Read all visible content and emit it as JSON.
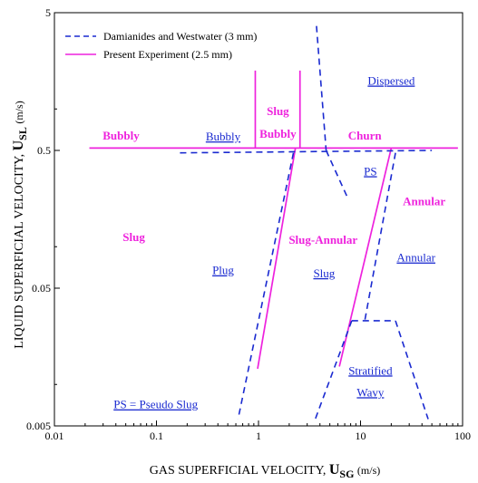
{
  "colors": {
    "present": "#ee22dd",
    "damianides": "#1a2ad0",
    "axis": "#000000"
  },
  "chart_data": {
    "type": "flow-regime-map",
    "xlabel": "GAS SUPERFICIAL VELOCITY,",
    "xlabel_symbol": "U",
    "xlabel_sub": "SG",
    "xlabel_unit": "(m/s)",
    "ylabel": "LIQUID SUPERFICIAL VELOCITY,",
    "ylabel_symbol": "U",
    "ylabel_sub": "SL",
    "ylabel_unit": "(m/s)",
    "x_scale": "log",
    "y_scale": "log",
    "xlim": [
      0.01,
      100
    ],
    "ylim": [
      0.005,
      5
    ],
    "x_ticks": [
      {
        "value": 0.01,
        "label": "0.01"
      },
      {
        "value": 0.1,
        "label": "0.1"
      },
      {
        "value": 1,
        "label": "1"
      },
      {
        "value": 10,
        "label": "10"
      },
      {
        "value": 100,
        "label": "100"
      }
    ],
    "y_ticks": [
      {
        "value": 5,
        "label": "5"
      },
      {
        "value": 0.5,
        "label": "0.5"
      },
      {
        "value": 0.05,
        "label": "0.05"
      },
      {
        "value": 0.005,
        "label": "0.005"
      }
    ],
    "legend": {
      "position": "top-left",
      "entries": [
        {
          "label": "Damianides and Westwater (3 mm)",
          "series": "damianides"
        },
        {
          "label": "Present Experiment (2.5 mm)",
          "series": "present"
        }
      ]
    },
    "series": [
      {
        "name": "Present Experiment (2.5 mm)",
        "key": "present",
        "style": "solid",
        "lines": [
          [
            [
              0.022,
              0.52
            ],
            [
              90,
              0.52
            ]
          ],
          [
            [
              0.93,
              0.52
            ],
            [
              0.93,
              1.9
            ]
          ],
          [
            [
              2.55,
              0.52
            ],
            [
              2.55,
              1.9
            ]
          ],
          [
            [
              2.3,
              0.52
            ],
            [
              0.98,
              0.013
            ]
          ],
          [
            [
              20,
              0.52
            ],
            [
              6.2,
              0.0135
            ]
          ]
        ]
      },
      {
        "name": "Damianides and Westwater (3 mm)",
        "key": "damianides",
        "style": "dashed",
        "lines": [
          [
            [
              0.17,
              0.48
            ],
            [
              50,
              0.5
            ]
          ],
          [
            [
              3.7,
              4.0
            ],
            [
              4.6,
              0.5
            ]
          ],
          [
            [
              4.6,
              0.5
            ],
            [
              7.4,
              0.23
            ]
          ],
          [
            [
              2.2,
              0.48
            ],
            [
              0.63,
              0.0056
            ]
          ],
          [
            [
              22,
              0.48
            ],
            [
              11,
              0.029
            ]
          ],
          [
            [
              8.2,
              0.029
            ],
            [
              22,
              0.029
            ]
          ],
          [
            [
              8.2,
              0.029
            ],
            [
              3.6,
              0.0056
            ]
          ],
          [
            [
              22,
              0.029
            ],
            [
              46,
              0.0056
            ]
          ]
        ]
      }
    ],
    "annotations": [
      {
        "text": "Bubbly",
        "x": 0.045,
        "y": 0.6,
        "series": "present"
      },
      {
        "text": "Slug",
        "x": 1.55,
        "y": 0.9,
        "series": "present"
      },
      {
        "text": "Bubbly",
        "x": 1.55,
        "y": 0.62,
        "series": "present"
      },
      {
        "text": "Churn",
        "x": 11,
        "y": 0.6,
        "series": "present"
      },
      {
        "text": "Slug",
        "x": 0.06,
        "y": 0.11,
        "series": "present"
      },
      {
        "text": "Slug-Annular",
        "x": 4.3,
        "y": 0.105,
        "series": "present"
      },
      {
        "text": "Annular",
        "x": 42,
        "y": 0.2,
        "series": "present"
      },
      {
        "text": "Bubbly",
        "x": 0.45,
        "y": 0.59,
        "series": "damianides"
      },
      {
        "text": "Dispersed",
        "x": 20,
        "y": 1.5,
        "series": "damianides"
      },
      {
        "text": "PS",
        "x": 12.5,
        "y": 0.33,
        "series": "damianides"
      },
      {
        "text": "Plug",
        "x": 0.45,
        "y": 0.063,
        "series": "damianides"
      },
      {
        "text": "Slug",
        "x": 4.4,
        "y": 0.06,
        "series": "damianides"
      },
      {
        "text": "Annular",
        "x": 35,
        "y": 0.078,
        "series": "damianides"
      },
      {
        "text": "Stratified",
        "x": 12.5,
        "y": 0.0118,
        "series": "damianides"
      },
      {
        "text": "Wavy",
        "x": 12.5,
        "y": 0.0082,
        "series": "damianides"
      },
      {
        "text": "PS = Pseudo Slug",
        "x": 0.038,
        "y": 0.0067,
        "series": "damianides"
      }
    ]
  }
}
